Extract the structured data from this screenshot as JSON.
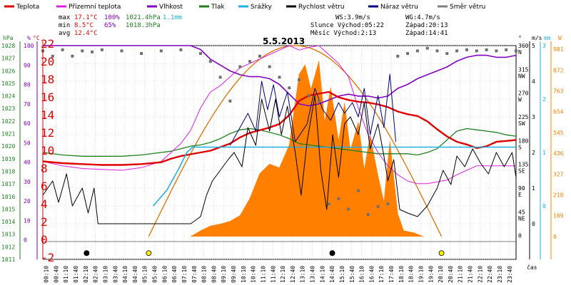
{
  "chart_data": {
    "type": "line",
    "title": "5.5.2013",
    "xlabel": "čas",
    "time_ticks": [
      "00:10",
      "00:40",
      "01:10",
      "01:40",
      "02:10",
      "02:40",
      "03:10",
      "03:40",
      "04:10",
      "04:40",
      "05:10",
      "05:40",
      "06:10",
      "06:40",
      "07:10",
      "07:40",
      "08:10",
      "08:40",
      "09:10",
      "09:40",
      "10:10",
      "10:40",
      "11:10",
      "11:40",
      "12:10",
      "12:40",
      "13:10",
      "13:40",
      "14:10",
      "14:40",
      "15:10",
      "15:40",
      "16:10",
      "16:40",
      "17:10",
      "17:40",
      "18:10",
      "18:40",
      "19:10",
      "19:40",
      "20:10",
      "20:40",
      "21:10",
      "21:40",
      "22:10",
      "22:40",
      "23:10",
      "23:40"
    ],
    "legend": [
      {
        "name": "Teplota",
        "color": "#e00000"
      },
      {
        "name": "Přízemní teplota",
        "color": "#e020e0"
      },
      {
        "name": "Vlhkost",
        "color": "#8000c0"
      },
      {
        "name": "Tlak",
        "color": "#208020"
      },
      {
        "name": "Srážky",
        "color": "#20b0e0"
      },
      {
        "name": "Rychlost větru",
        "color": "#000000"
      },
      {
        "name": "Náraz větru",
        "color": "#000080"
      },
      {
        "name": "Směr větru",
        "color": "#808080"
      }
    ],
    "stats": {
      "max": {
        "label": "max",
        "temp": "17.1°C",
        "hum": "100%",
        "press": "1021.4hPa",
        "rain": "1.1mm"
      },
      "min": {
        "label": "min",
        "temp": "8.5°C",
        "hum": "65%",
        "press": "1018.3hPa"
      },
      "avg": {
        "label": "avg",
        "temp": "12.4°C"
      }
    },
    "info": {
      "ws": "WS:3.9m/s",
      "wg": "WG:4.7m/s",
      "sun": "Slunce Východ:05:22",
      "sunset": "Západ:20:13",
      "moon": "Měsíc  Východ:2:13",
      "moonset": "Západ:14:41"
    },
    "axes": {
      "hpa_unit": "hPa",
      "pct_unit": "%",
      "c_unit": "°C",
      "deg_unit": "°",
      "mm_unit": "mm",
      "ms_unit": "m/s",
      "w_unit": "W",
      "hpa": [
        "1028",
        "1027",
        "1026",
        "1025",
        "1024",
        "1023",
        "1022",
        "1021",
        "1020",
        "1019",
        "1018",
        "1017",
        "1016",
        "1015",
        "1014",
        "1013",
        "1012",
        "1011"
      ],
      "pct": [
        "100",
        "90",
        "80",
        "70",
        "60",
        "50",
        "40",
        "30",
        "20",
        "10",
        "0"
      ],
      "celsius": [
        "22",
        "20",
        "18",
        "16",
        "14",
        "12",
        "10",
        "8",
        "6",
        "4",
        "2",
        "0",
        "-2"
      ],
      "dir": [
        {
          "deg": "360",
          "lab": "N"
        },
        {
          "deg": "315",
          "lab": "NW"
        },
        {
          "deg": "270",
          "lab": "W"
        },
        {
          "deg": "225",
          "lab": "SW"
        },
        {
          "deg": "180",
          "lab": "S"
        },
        {
          "deg": "135",
          "lab": "SE"
        },
        {
          "deg": "90",
          "lab": "E"
        },
        {
          "deg": "45",
          "lab": "NE"
        },
        {
          "deg": "0",
          "lab": ""
        }
      ],
      "ms": [
        "5",
        "4",
        "3",
        "2",
        "1",
        "0"
      ],
      "mm": [
        "3",
        "2",
        "1",
        "0"
      ],
      "watt": [
        "981",
        "872",
        "763",
        "654",
        "545",
        "436",
        "327",
        "218",
        "109",
        "0"
      ]
    },
    "x_hours": [
      0,
      1,
      2,
      3,
      4,
      5,
      6,
      6.5,
      7,
      7.5,
      8,
      8.5,
      9,
      9.5,
      10,
      10.5,
      11,
      11.5,
      12,
      12.5,
      13,
      13.5,
      14,
      14.5,
      15,
      15.5,
      16,
      16.5,
      17,
      17.5,
      18,
      18.5,
      19,
      19.5,
      20,
      20.5,
      21,
      21.5,
      22,
      22.5,
      23,
      23.5,
      24
    ],
    "temperature_c": [
      9.0,
      8.8,
      8.7,
      8.6,
      8.6,
      8.7,
      8.9,
      9.3,
      9.6,
      9.8,
      10.0,
      10.2,
      10.6,
      11.0,
      11.7,
      12.2,
      12.5,
      12.8,
      13.2,
      14.2,
      15.8,
      16.4,
      16.6,
      16.8,
      16.2,
      15.9,
      15.7,
      15.6,
      15.4,
      15.1,
      14.6,
      14.3,
      14.1,
      13.5,
      12.6,
      11.8,
      11.2,
      10.9,
      10.5,
      10.7,
      11.2,
      11.3,
      11.4
    ],
    "ground_temp_c": [
      9.0,
      8.5,
      8.2,
      8.1,
      8.0,
      8.3,
      9.0,
      10.0,
      11.0,
      12.5,
      15.0,
      16.8,
      17.5,
      18.5,
      19.5,
      20.0,
      20.5,
      21.0,
      21.5,
      22.0,
      21.5,
      21.8,
      22.0,
      21.0,
      20.0,
      18.5,
      15.0,
      12.0,
      10.0,
      8.5,
      7.5,
      6.8,
      6.5,
      6.5,
      6.7,
      6.9,
      7.5,
      8.0,
      8.5,
      8.5,
      8.5,
      8.5,
      8.5
    ],
    "humidity_pct": [
      100,
      100,
      100,
      100,
      100,
      100,
      100,
      100,
      100,
      100,
      98,
      93,
      90,
      87,
      85,
      84,
      84,
      83,
      80,
      75,
      70,
      69,
      70,
      72,
      74,
      75,
      74,
      74,
      73,
      74,
      78,
      80,
      83,
      85,
      87,
      89,
      92,
      94,
      95,
      95,
      94,
      94,
      95
    ],
    "pressure_hpa": [
      1019.5,
      1019.3,
      1019.2,
      1019.2,
      1019.2,
      1019.3,
      1019.5,
      1019.6,
      1019.8,
      1020.0,
      1020.1,
      1020.3,
      1020.6,
      1021.0,
      1021.3,
      1021.4,
      1021.3,
      1021.1,
      1020.9,
      1020.6,
      1020.2,
      1020.1,
      1020.0,
      1019.9,
      1019.8,
      1019.7,
      1019.6,
      1019.5,
      1019.4,
      1019.4,
      1019.4,
      1019.4,
      1019.3,
      1019.5,
      1019.8,
      1020.5,
      1021.2,
      1021.4,
      1021.3,
      1021.2,
      1021.1,
      1020.9,
      1020.8
    ],
    "rain_cum_mm_points": [
      [
        5.6,
        0
      ],
      [
        6.3,
        0.3
      ],
      [
        6.9,
        0.7
      ],
      [
        7.3,
        1.0
      ],
      [
        7.6,
        1.1
      ],
      [
        24,
        1.1
      ]
    ],
    "wind_speed_ms_points": [
      [
        0,
        0.8
      ],
      [
        0.5,
        1.2
      ],
      [
        0.8,
        0.6
      ],
      [
        1.2,
        1.4
      ],
      [
        1.5,
        0.5
      ],
      [
        2,
        1.0
      ],
      [
        2.3,
        0.3
      ],
      [
        2.6,
        1.0
      ],
      [
        2.8,
        0
      ],
      [
        5.5,
        0
      ],
      [
        6.5,
        0
      ],
      [
        7.5,
        0
      ],
      [
        8,
        0.2
      ],
      [
        8.3,
        0.8
      ],
      [
        8.6,
        1.2
      ],
      [
        9,
        1.5
      ],
      [
        9.4,
        1.8
      ],
      [
        9.7,
        2.0
      ],
      [
        10.1,
        1.6
      ],
      [
        10.4,
        2.7
      ],
      [
        10.8,
        2.2
      ],
      [
        11.1,
        3.5
      ],
      [
        11.5,
        2.6
      ],
      [
        11.8,
        3.5
      ],
      [
        12.1,
        2.5
      ],
      [
        12.4,
        3.3
      ],
      [
        12.8,
        2.0
      ],
      [
        13.1,
        0.8
      ],
      [
        13.4,
        2.3
      ],
      [
        13.8,
        3.6
      ],
      [
        14.1,
        1.5
      ],
      [
        14.4,
        0.4
      ],
      [
        14.7,
        2.5
      ],
      [
        15,
        1.3
      ],
      [
        15.3,
        2.8
      ],
      [
        15.6,
        3.0
      ],
      [
        16,
        2.5
      ],
      [
        16.3,
        3.4
      ],
      [
        16.6,
        2.1
      ],
      [
        17,
        2.8
      ],
      [
        17.3,
        1.9
      ],
      [
        17.5,
        1.2
      ],
      [
        17.8,
        1.8
      ],
      [
        18.1,
        0.4
      ],
      [
        18.5,
        0.3
      ],
      [
        19,
        0.2
      ],
      [
        19.5,
        0.5
      ],
      [
        20,
        1.0
      ],
      [
        20.3,
        1.5
      ],
      [
        20.7,
        1.1
      ],
      [
        21,
        1.9
      ],
      [
        21.4,
        1.6
      ],
      [
        21.8,
        2.1
      ],
      [
        22.2,
        1.7
      ],
      [
        22.6,
        1.4
      ],
      [
        23,
        2.0
      ],
      [
        23.4,
        1.6
      ],
      [
        23.8,
        2.0
      ],
      [
        24,
        1.3
      ]
    ],
    "gust_ms_points": [
      [
        9.5,
        2.2
      ],
      [
        10.4,
        3.1
      ],
      [
        10.8,
        2.6
      ],
      [
        11.1,
        4.0
      ],
      [
        11.4,
        3.2
      ],
      [
        11.7,
        3.9
      ],
      [
        12,
        3.0
      ],
      [
        12.4,
        3.7
      ],
      [
        12.8,
        2.3
      ],
      [
        13.4,
        2.8
      ],
      [
        13.8,
        3.8
      ],
      [
        14.2,
        3.2
      ],
      [
        14.6,
        2.9
      ],
      [
        15,
        3.4
      ],
      [
        15.3,
        3.1
      ],
      [
        15.7,
        3.4
      ],
      [
        16,
        3.0
      ],
      [
        16.3,
        3.8
      ],
      [
        16.6,
        2.5
      ],
      [
        17,
        3.6
      ],
      [
        17.3,
        2.7
      ],
      [
        17.6,
        4.2
      ],
      [
        17.9,
        2.3
      ]
    ],
    "wind_dir_deg_points": [
      [
        0,
        350
      ],
      [
        0.5,
        340
      ],
      [
        1,
        352
      ],
      [
        1.5,
        340
      ],
      [
        2,
        350
      ],
      [
        2.5,
        348
      ],
      [
        3,
        352
      ],
      [
        4,
        350
      ],
      [
        5,
        345
      ],
      [
        6,
        350
      ],
      [
        7,
        352
      ],
      [
        8,
        345
      ],
      [
        8.5,
        330
      ],
      [
        9,
        300
      ],
      [
        9.5,
        255
      ],
      [
        10,
        320
      ],
      [
        10.5,
        330
      ],
      [
        11,
        340
      ],
      [
        11.5,
        320
      ],
      [
        12,
        300
      ],
      [
        12.5,
        280
      ],
      [
        13,
        295
      ],
      [
        13.5,
        265
      ],
      [
        14,
        255
      ],
      [
        14.5,
        60
      ],
      [
        15,
        70
      ],
      [
        15.5,
        50
      ],
      [
        16,
        85
      ],
      [
        16.5,
        40
      ],
      [
        17,
        55
      ],
      [
        17.5,
        60
      ],
      [
        18,
        340
      ],
      [
        18.5,
        345
      ],
      [
        19,
        350
      ],
      [
        19.5,
        355
      ],
      [
        20,
        350
      ],
      [
        20.5,
        345
      ],
      [
        21,
        350
      ],
      [
        21.5,
        352
      ],
      [
        22,
        350
      ],
      [
        22.5,
        352
      ],
      [
        23,
        350
      ],
      [
        23.5,
        352
      ],
      [
        24,
        350
      ]
    ],
    "solar_w_points": [
      [
        7.5,
        0
      ],
      [
        8,
        30
      ],
      [
        8.5,
        55
      ],
      [
        9,
        65
      ],
      [
        9.5,
        80
      ],
      [
        10,
        110
      ],
      [
        10.5,
        200
      ],
      [
        11,
        330
      ],
      [
        11.5,
        380
      ],
      [
        12,
        360
      ],
      [
        12.5,
        480
      ],
      [
        13,
        850
      ],
      [
        13.3,
        900
      ],
      [
        13.6,
        770
      ],
      [
        14,
        920
      ],
      [
        14.3,
        600
      ],
      [
        14.6,
        780
      ],
      [
        15,
        500
      ],
      [
        15.3,
        700
      ],
      [
        15.6,
        450
      ],
      [
        16,
        600
      ],
      [
        16.3,
        350
      ],
      [
        16.6,
        530
      ],
      [
        17,
        320
      ],
      [
        17.3,
        180
      ],
      [
        17.6,
        500
      ],
      [
        18,
        120
      ],
      [
        18.3,
        30
      ],
      [
        18.8,
        20
      ],
      [
        19.3,
        0
      ]
    ],
    "sun_theoretical_w": 1000,
    "sun_markers": [
      {
        "hour": 5.37,
        "kind": "sunrise"
      },
      {
        "hour": 20.22,
        "kind": "sunset"
      }
    ],
    "moon_markers": [
      {
        "hour": 2.22,
        "kind": "moonrise"
      },
      {
        "hour": 14.68,
        "kind": "moonset"
      }
    ]
  }
}
